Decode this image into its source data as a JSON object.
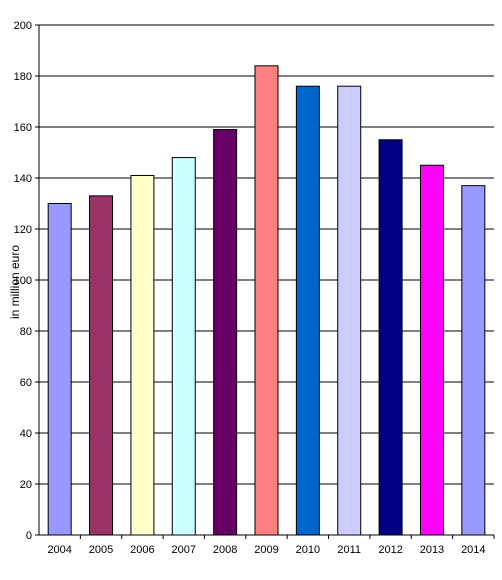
{
  "chart_data": {
    "type": "bar",
    "title": "",
    "xlabel": "",
    "ylabel": "in million euro",
    "ylim": [
      0,
      200
    ],
    "yticks": [
      0,
      20,
      40,
      60,
      80,
      100,
      120,
      140,
      160,
      180,
      200
    ],
    "grid": true,
    "legend": "none",
    "categories": [
      "2004",
      "2005",
      "2006",
      "2007",
      "2008",
      "2009",
      "2010",
      "2011",
      "2012",
      "2013",
      "2014"
    ],
    "values": [
      130,
      133,
      141,
      148,
      159,
      184,
      176,
      176,
      155,
      145,
      137
    ],
    "colors": [
      "#9999ff",
      "#993366",
      "#ffffcc",
      "#ccffff",
      "#660066",
      "#ff8080",
      "#0066cc",
      "#ccccff",
      "#000080",
      "#ff00ff",
      "#9999ff"
    ]
  }
}
